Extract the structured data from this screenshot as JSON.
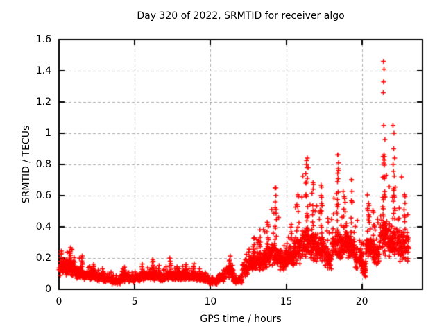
{
  "chart_data": {
    "type": "scatter",
    "title": "Day 320 of 2022, SRMTID for receiver algo",
    "xlabel": "GPS time / hours",
    "ylabel": "SRMTID / TECUs",
    "xlim": [
      0,
      24
    ],
    "ylim": [
      0,
      1.6
    ],
    "xticks": [
      0,
      5,
      10,
      15,
      20
    ],
    "xtick_labels": [
      "0",
      "5",
      "10",
      "15",
      "20"
    ],
    "yticks": [
      0,
      0.2,
      0.4,
      0.6,
      0.8,
      1.0,
      1.2,
      1.4,
      1.6
    ],
    "ytick_labels": [
      "0",
      "0.2",
      "0.4",
      "0.6",
      "0.8",
      "1",
      "1.2",
      "1.4",
      "1.6"
    ],
    "grid": true,
    "grid_color": "#ababab",
    "frame_color": "#000000",
    "marker": "plus",
    "marker_color": "#ff0000",
    "marker_size": 7,
    "legend": "none",
    "seed": 7,
    "density_bins_comment": "each bin = [hour_start, hour_end, n_points, y_min, y_typical, y_max] read from the plot envelope",
    "density_bins": [
      [
        0.0,
        0.5,
        55,
        0.05,
        0.12,
        0.24
      ],
      [
        0.5,
        1.0,
        55,
        0.05,
        0.12,
        0.26
      ],
      [
        1.0,
        1.5,
        55,
        0.05,
        0.1,
        0.21
      ],
      [
        1.5,
        2.0,
        55,
        0.04,
        0.08,
        0.14
      ],
      [
        2.0,
        2.5,
        55,
        0.04,
        0.08,
        0.16
      ],
      [
        2.5,
        3.0,
        55,
        0.03,
        0.07,
        0.13
      ],
      [
        3.0,
        3.5,
        55,
        0.03,
        0.06,
        0.11
      ],
      [
        3.5,
        4.1,
        60,
        0.02,
        0.05,
        0.09
      ],
      [
        4.1,
        4.5,
        45,
        0.03,
        0.07,
        0.14
      ],
      [
        4.5,
        5.0,
        55,
        0.03,
        0.06,
        0.11
      ],
      [
        5.0,
        5.5,
        55,
        0.04,
        0.07,
        0.13
      ],
      [
        5.5,
        6.0,
        55,
        0.04,
        0.08,
        0.16
      ],
      [
        6.0,
        6.5,
        55,
        0.04,
        0.08,
        0.15
      ],
      [
        6.5,
        7.0,
        55,
        0.04,
        0.07,
        0.13
      ],
      [
        7.0,
        7.5,
        55,
        0.04,
        0.08,
        0.15
      ],
      [
        7.5,
        8.0,
        55,
        0.04,
        0.08,
        0.14
      ],
      [
        8.0,
        8.5,
        55,
        0.04,
        0.08,
        0.15
      ],
      [
        8.5,
        9.0,
        55,
        0.04,
        0.08,
        0.15
      ],
      [
        9.0,
        9.5,
        55,
        0.04,
        0.07,
        0.13
      ],
      [
        9.5,
        9.9,
        45,
        0.03,
        0.06,
        0.11
      ],
      [
        9.9,
        10.5,
        55,
        0.02,
        0.045,
        0.08
      ],
      [
        10.5,
        11.0,
        50,
        0.03,
        0.07,
        0.13
      ],
      [
        11.0,
        11.5,
        50,
        0.05,
        0.1,
        0.19
      ],
      [
        11.5,
        12.1,
        60,
        0.02,
        0.05,
        0.09
      ],
      [
        12.1,
        12.5,
        45,
        0.05,
        0.12,
        0.24
      ],
      [
        12.5,
        13.0,
        58,
        0.08,
        0.15,
        0.3
      ],
      [
        13.0,
        13.5,
        58,
        0.08,
        0.16,
        0.35
      ],
      [
        13.5,
        14.0,
        58,
        0.09,
        0.18,
        0.4
      ],
      [
        14.0,
        14.5,
        58,
        0.1,
        0.2,
        0.55
      ],
      [
        14.5,
        15.0,
        58,
        0.08,
        0.17,
        0.36
      ],
      [
        15.0,
        15.5,
        58,
        0.1,
        0.19,
        0.42
      ],
      [
        15.5,
        16.0,
        58,
        0.11,
        0.23,
        0.55
      ],
      [
        16.0,
        16.5,
        60,
        0.14,
        0.28,
        0.75
      ],
      [
        16.5,
        17.0,
        60,
        0.12,
        0.26,
        0.62
      ],
      [
        17.0,
        17.5,
        58,
        0.12,
        0.24,
        0.6
      ],
      [
        17.5,
        18.0,
        55,
        0.08,
        0.18,
        0.48
      ],
      [
        18.0,
        18.5,
        58,
        0.14,
        0.26,
        0.72
      ],
      [
        18.5,
        19.0,
        58,
        0.14,
        0.26,
        0.68
      ],
      [
        19.0,
        19.5,
        58,
        0.12,
        0.24,
        0.66
      ],
      [
        19.5,
        20.0,
        55,
        0.08,
        0.18,
        0.45
      ],
      [
        20.0,
        20.3,
        35,
        0.04,
        0.12,
        0.3
      ],
      [
        20.3,
        20.8,
        58,
        0.12,
        0.24,
        0.55
      ],
      [
        20.8,
        21.2,
        48,
        0.1,
        0.2,
        0.45
      ],
      [
        21.2,
        21.7,
        60,
        0.15,
        0.3,
        0.8
      ],
      [
        21.7,
        22.0,
        45,
        0.12,
        0.26,
        0.7
      ],
      [
        22.0,
        22.5,
        58,
        0.14,
        0.28,
        0.68
      ],
      [
        22.5,
        23.1,
        58,
        0.12,
        0.25,
        0.55
      ]
    ],
    "spike_columns_comment": "vertical TID streaks = [hour_center, width_hours, y_bottom, y_top, n_points]",
    "spike_columns": [
      [
        0.15,
        0.1,
        0.14,
        0.24,
        6
      ],
      [
        0.7,
        0.25,
        0.14,
        0.26,
        10
      ],
      [
        1.5,
        0.15,
        0.12,
        0.21,
        7
      ],
      [
        2.3,
        0.12,
        0.08,
        0.16,
        6
      ],
      [
        2.9,
        0.1,
        0.07,
        0.13,
        5
      ],
      [
        4.3,
        0.15,
        0.06,
        0.14,
        7
      ],
      [
        5.5,
        0.12,
        0.07,
        0.16,
        6
      ],
      [
        6.2,
        0.12,
        0.09,
        0.19,
        6
      ],
      [
        6.6,
        0.1,
        0.08,
        0.15,
        5
      ],
      [
        7.35,
        0.12,
        0.09,
        0.2,
        7
      ],
      [
        7.8,
        0.1,
        0.08,
        0.14,
        5
      ],
      [
        8.35,
        0.12,
        0.08,
        0.16,
        6
      ],
      [
        8.9,
        0.12,
        0.08,
        0.16,
        6
      ],
      [
        9.3,
        0.1,
        0.07,
        0.13,
        5
      ],
      [
        11.3,
        0.15,
        0.1,
        0.21,
        7
      ],
      [
        12.85,
        0.15,
        0.14,
        0.32,
        8
      ],
      [
        13.3,
        0.12,
        0.15,
        0.37,
        8
      ],
      [
        13.75,
        0.15,
        0.18,
        0.44,
        8
      ],
      [
        14.3,
        0.15,
        0.22,
        0.65,
        11
      ],
      [
        15.3,
        0.12,
        0.18,
        0.4,
        6
      ],
      [
        15.8,
        0.12,
        0.22,
        0.6,
        8
      ],
      [
        16.35,
        0.18,
        0.28,
        0.85,
        14
      ],
      [
        16.75,
        0.12,
        0.26,
        0.7,
        9
      ],
      [
        17.3,
        0.15,
        0.24,
        0.68,
        9
      ],
      [
        18.4,
        0.18,
        0.28,
        0.84,
        12
      ],
      [
        18.8,
        0.12,
        0.26,
        0.64,
        7
      ],
      [
        19.3,
        0.15,
        0.26,
        0.7,
        9
      ],
      [
        20.4,
        0.15,
        0.24,
        0.62,
        9
      ],
      [
        20.75,
        0.1,
        0.2,
        0.5,
        5
      ],
      [
        21.45,
        0.18,
        0.28,
        0.88,
        14
      ],
      [
        22.1,
        0.15,
        0.28,
        0.78,
        10
      ],
      [
        22.8,
        0.15,
        0.22,
        0.6,
        8
      ]
    ],
    "outlier_points_comment": "distinct individual points read off the plot [hour, TECUs]",
    "outlier_points": [
      [
        21.42,
        1.46
      ],
      [
        21.46,
        1.41
      ],
      [
        21.43,
        1.33
      ],
      [
        21.41,
        1.26
      ],
      [
        21.44,
        1.05
      ],
      [
        21.52,
        0.96
      ],
      [
        21.4,
        0.85
      ],
      [
        21.46,
        0.83
      ],
      [
        22.05,
        1.05
      ],
      [
        22.12,
        1.0
      ],
      [
        22.1,
        0.9
      ],
      [
        22.16,
        0.84
      ],
      [
        22.06,
        0.8
      ],
      [
        18.4,
        0.86
      ],
      [
        18.46,
        0.81
      ],
      [
        16.4,
        0.84
      ],
      [
        16.34,
        0.8
      ],
      [
        16.45,
        0.78
      ],
      [
        22.62,
        0.72
      ],
      [
        19.32,
        0.7
      ],
      [
        14.32,
        0.65
      ],
      [
        12.88,
        0.33
      ]
    ]
  }
}
